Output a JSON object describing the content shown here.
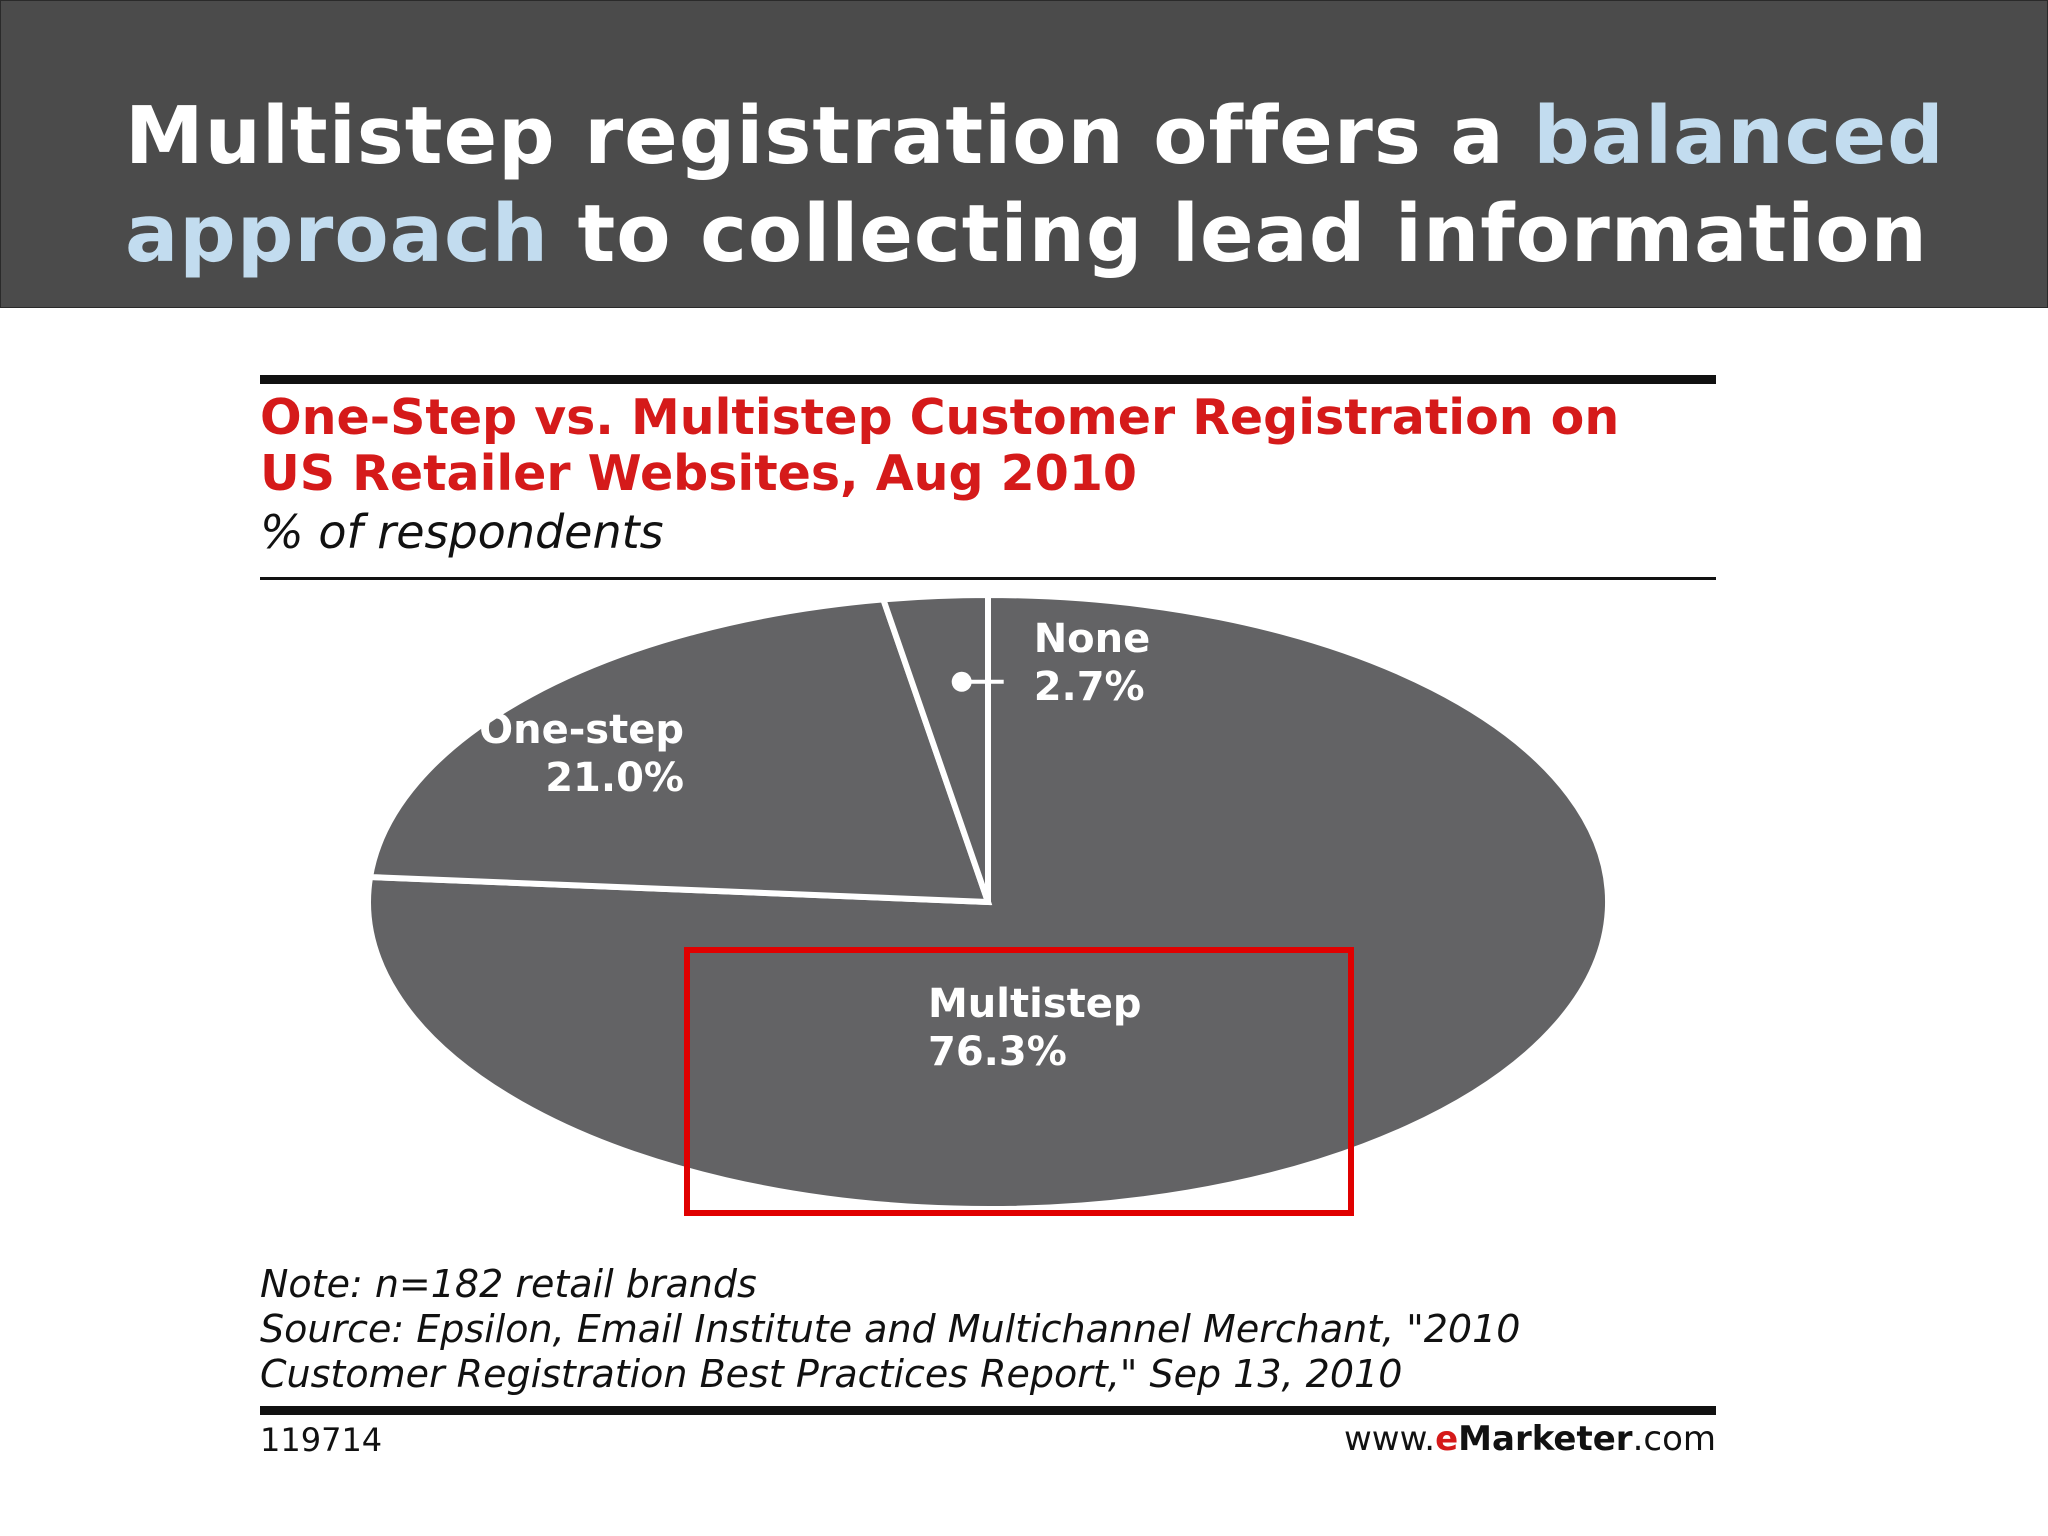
{
  "header": {
    "title_part1": "Multistep registration offers a ",
    "title_highlight": "balanced approach",
    "title_part2": " to collecting lead information",
    "highlight_color": "#c2dcef"
  },
  "chart_data": {
    "type": "pie",
    "title_line1": "One-Step vs. Multistep Customer Registration on",
    "title_line2": "US Retailer Websites, Aug 2010",
    "subtitle": "% of respondents",
    "slices": [
      {
        "label": "One-step",
        "value": 21.0,
        "value_text": "21.0%"
      },
      {
        "label": "None",
        "value": 2.7,
        "value_text": "2.7%"
      },
      {
        "label": "Multistep",
        "value": 76.3,
        "value_text": "76.3%",
        "highlighted": true
      }
    ],
    "slice_color": "#636365",
    "highlight_box_color": "#e00000",
    "title_color": "#d51a1a"
  },
  "notes": {
    "note": "Note: n=182 retail brands",
    "source_line1": "Source: Epsilon, Email Institute and Multichannel Merchant, \"2010",
    "source_line2": "Customer Registration Best Practices Report,\" Sep 13, 2010"
  },
  "footer": {
    "chart_id": "119714",
    "brand_prefix": "www.",
    "brand_e": "e",
    "brand_name": "Marketer",
    "brand_suffix": ".com"
  }
}
